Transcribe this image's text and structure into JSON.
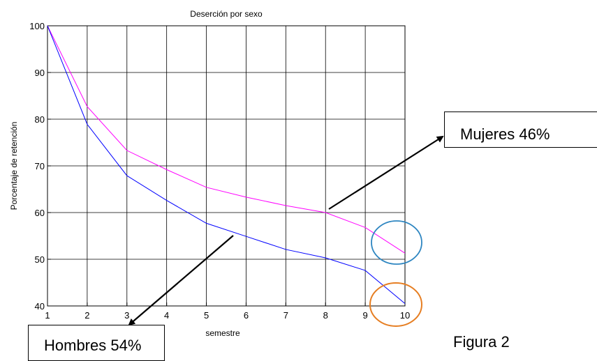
{
  "chart_data": {
    "type": "line",
    "title": "Deserción por sexo",
    "xlabel": "semestre",
    "ylabel": "Porcentaje de retención",
    "x": [
      1,
      2,
      3,
      4,
      5,
      6,
      7,
      8,
      9,
      10
    ],
    "xlim": [
      1,
      10
    ],
    "ylim": [
      40,
      100
    ],
    "xticks": [
      1,
      2,
      3,
      4,
      5,
      6,
      7,
      8,
      9,
      10
    ],
    "yticks": [
      40,
      50,
      60,
      70,
      80,
      90,
      100
    ],
    "grid": true,
    "series": [
      {
        "name": "Mujeres",
        "color": "#ff00ff",
        "values": [
          100,
          82.7,
          73.3,
          69.2,
          65.4,
          63.3,
          61.5,
          60.0,
          56.8,
          51.3
        ]
      },
      {
        "name": "Hombres",
        "color": "#0000ff",
        "values": [
          100,
          78.9,
          67.9,
          62.6,
          57.7,
          54.9,
          52.1,
          50.3,
          47.6,
          40.5
        ]
      }
    ]
  },
  "annotations": {
    "mujeres": "Mujeres 46%",
    "hombres": "Hombres 54%",
    "figure": "Figura 2",
    "circle_colors": {
      "upper": "#2e86c1",
      "lower": "#e67e22"
    }
  }
}
